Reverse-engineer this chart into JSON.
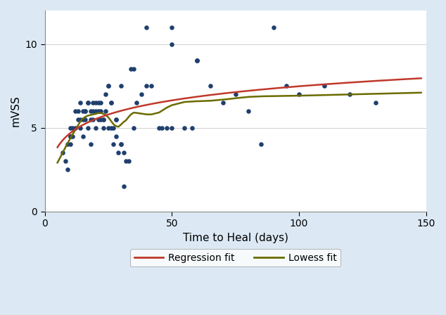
{
  "scatter_x": [
    7,
    8,
    9,
    9,
    10,
    10,
    11,
    12,
    12,
    13,
    14,
    14,
    15,
    15,
    16,
    16,
    17,
    17,
    18,
    18,
    19,
    19,
    20,
    20,
    21,
    21,
    22,
    22,
    23,
    23,
    24,
    25,
    25,
    26,
    26,
    27,
    28,
    28,
    29,
    30,
    30,
    31,
    32,
    33,
    34,
    35,
    36,
    38,
    40,
    42,
    45,
    46,
    48,
    50,
    50,
    55,
    58,
    60,
    60,
    65,
    70,
    75,
    80,
    85,
    90,
    95,
    100,
    110,
    120,
    130
  ],
  "scatter_y": [
    3.5,
    3.0,
    4.0,
    2.5,
    4.5,
    5.0,
    5.0,
    5.0,
    6.0,
    6.0,
    5.0,
    6.5,
    5.5,
    6.0,
    6.0,
    5.5,
    6.5,
    5.0,
    6.0,
    4.0,
    6.5,
    5.5,
    6.5,
    5.0,
    6.5,
    5.5,
    6.5,
    5.5,
    5.0,
    5.5,
    6.0,
    7.5,
    5.0,
    6.5,
    5.0,
    4.0,
    5.5,
    4.5,
    3.5,
    7.5,
    4.0,
    1.5,
    3.0,
    3.0,
    8.5,
    5.0,
    6.5,
    7.0,
    7.5,
    7.5,
    5.0,
    5.0,
    5.0,
    5.0,
    10.0,
    5.0,
    5.0,
    9.0,
    9.0,
    7.5,
    6.5,
    7.0,
    6.0,
    4.0,
    11.0,
    7.5,
    7.0,
    7.5,
    7.0,
    6.5
  ],
  "scatter_x_extra": [
    10,
    10,
    11,
    13,
    14,
    15,
    16,
    17,
    18,
    19,
    20,
    21,
    22,
    23,
    24,
    25,
    26,
    27,
    28,
    30,
    31,
    35,
    40,
    50,
    60
  ],
  "scatter_y_extra": [
    4.0,
    4.5,
    4.5,
    5.5,
    5.5,
    4.5,
    6.0,
    6.5,
    5.5,
    6.0,
    6.0,
    6.0,
    6.0,
    5.5,
    7.0,
    7.5,
    6.5,
    5.0,
    5.5,
    4.0,
    3.5,
    8.5,
    11.0,
    11.0,
    9.0
  ],
  "scatter_color": "#1f3f6e",
  "scatter_size": 22,
  "regression_color": "#c0392b",
  "lowess_color": "#6b6b00",
  "xlim": [
    0,
    150
  ],
  "ylim": [
    0,
    12
  ],
  "xticks": [
    0,
    50,
    100,
    150
  ],
  "yticks": [
    0,
    5,
    10
  ],
  "xlabel": "Time to Heal (days)",
  "ylabel": "mVSS",
  "background_color": "#dce9f5",
  "plot_background": "#ffffff",
  "legend_labels": [
    "Regression fit",
    "Lowess fit"
  ],
  "legend_colors": [
    "#c0392b",
    "#6b6b00"
  ],
  "gridline_y": [
    5,
    10
  ],
  "gridline_color": "#d0d0d0"
}
